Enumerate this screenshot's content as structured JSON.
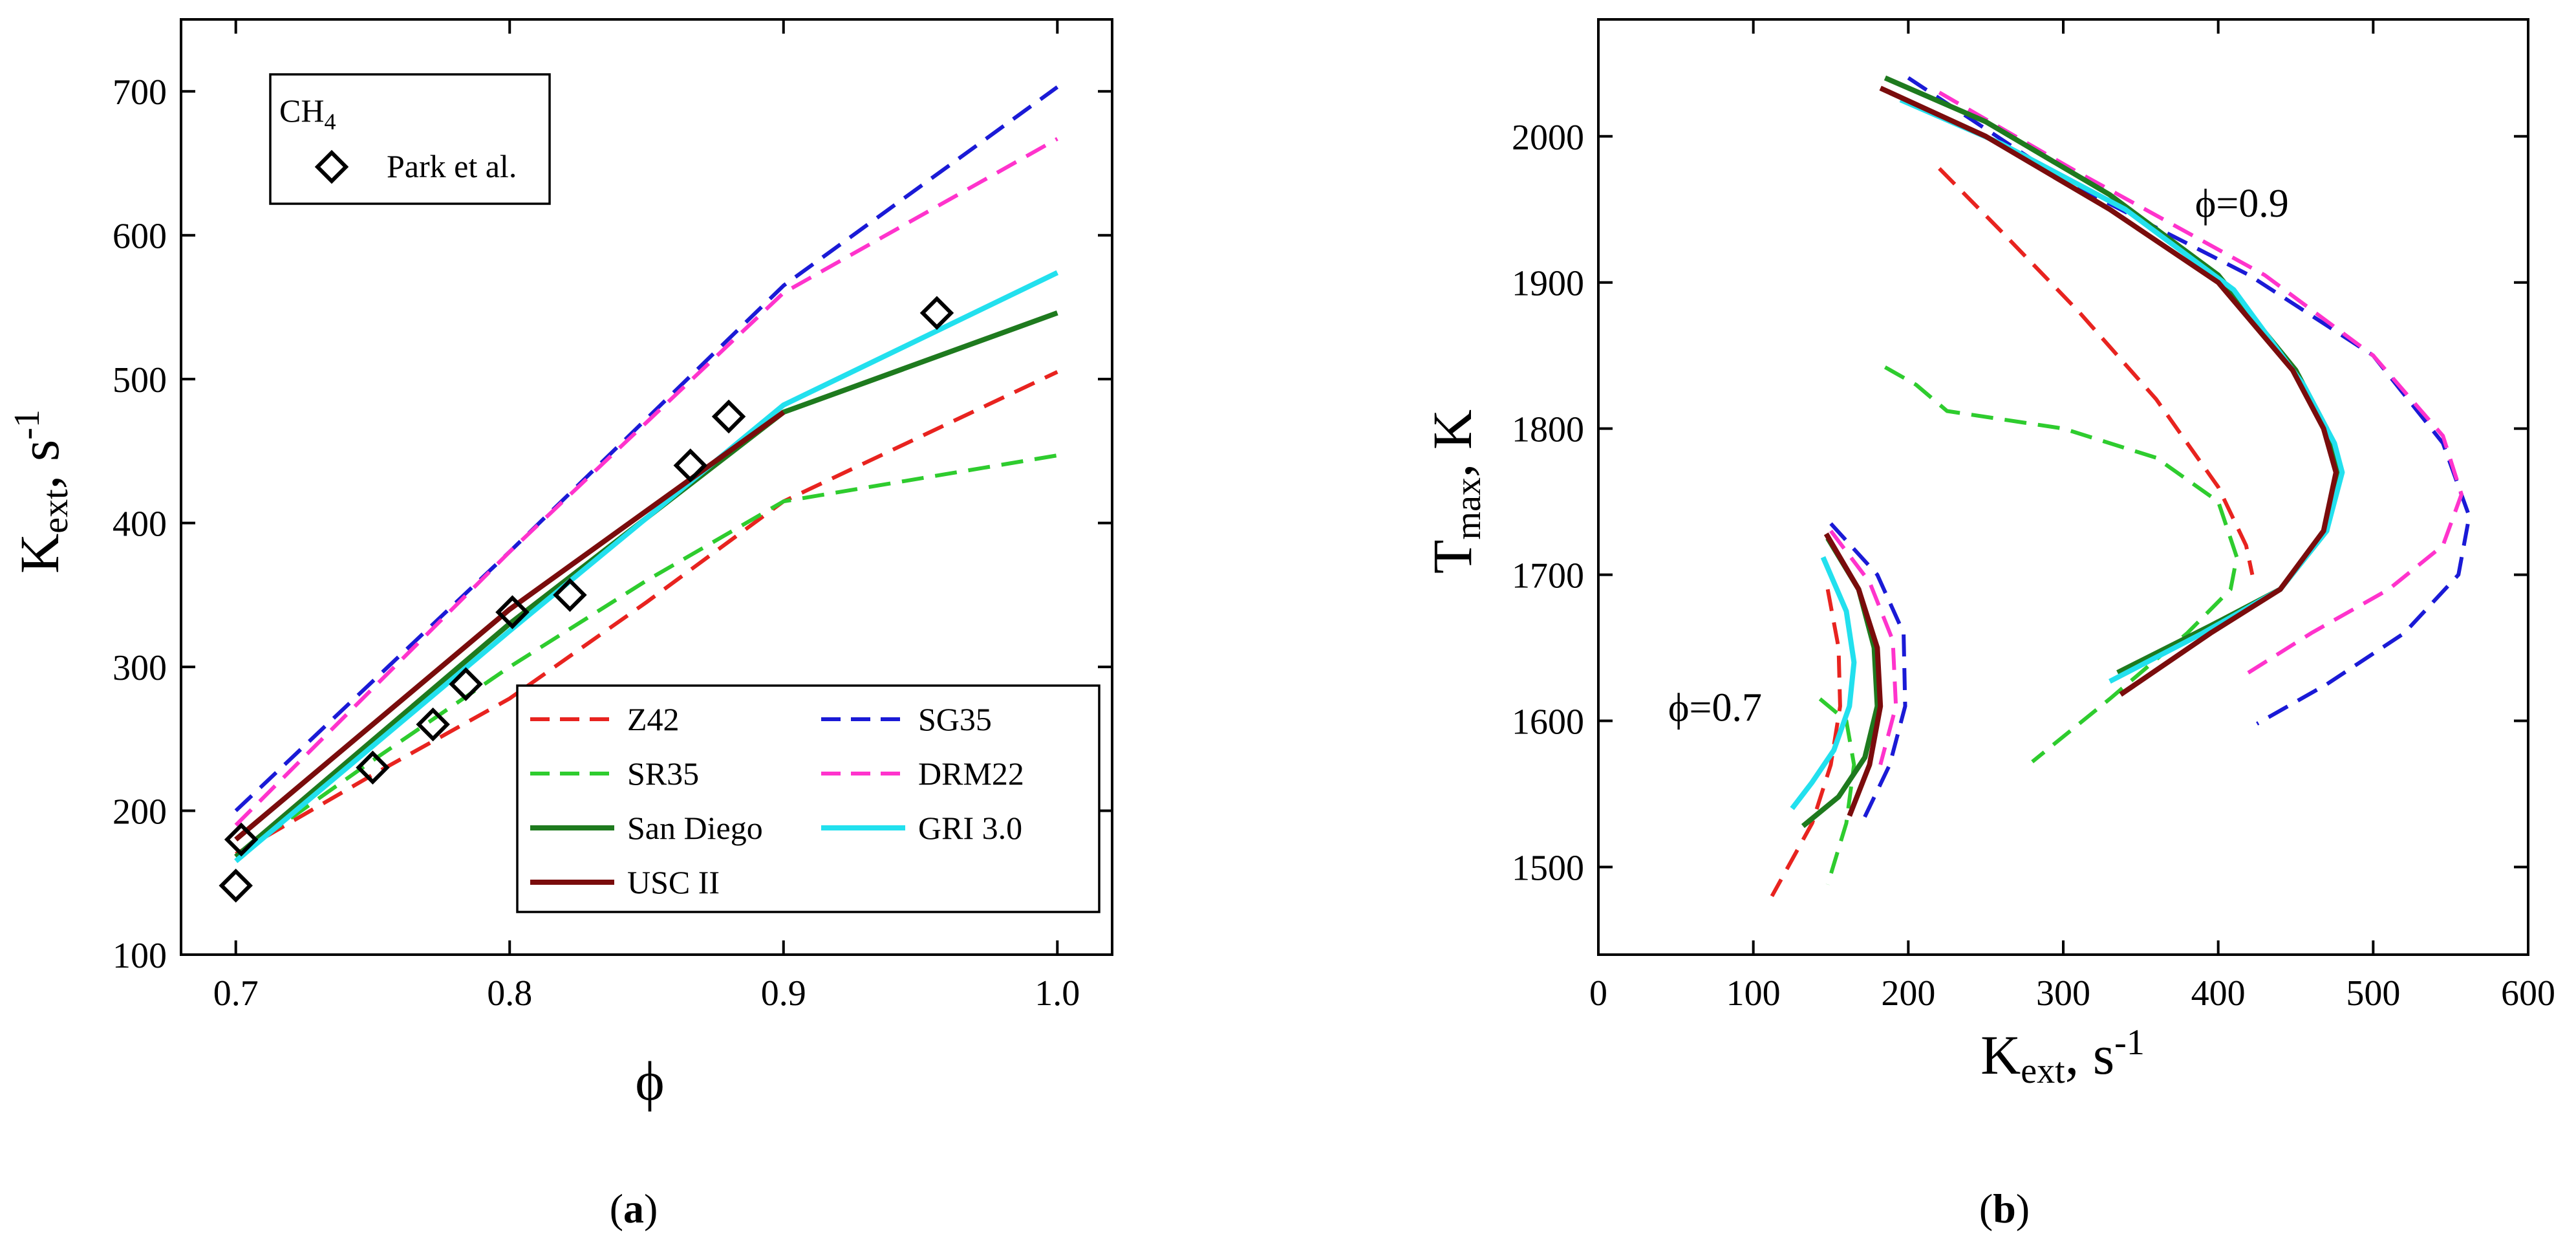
{
  "chart_data": [
    {
      "id": "a",
      "type": "line",
      "panel_label": {
        "open": "(",
        "letter": "a",
        "close": ")"
      },
      "xlabel": "ϕ",
      "ylabel": {
        "main": "K",
        "sub": "ext",
        "unit": ", s",
        "sup": "-1"
      },
      "xlim": [
        0.68,
        1.02
      ],
      "ylim": [
        100,
        750
      ],
      "xticks": [
        0.7,
        0.8,
        0.9,
        1.0
      ],
      "xtick_labels": [
        "0.7",
        "0.8",
        "0.9",
        "1.0"
      ],
      "yticks": [
        100,
        200,
        300,
        400,
        500,
        600,
        700
      ],
      "ytick_labels": [
        "100",
        "200",
        "300",
        "400",
        "500",
        "600",
        "700"
      ],
      "annotation": {
        "main": "CH",
        "sub": "4"
      },
      "experiment": {
        "name": "Park et al.",
        "marker": "diamond",
        "x": [
          0.7,
          0.702,
          0.75,
          0.772,
          0.784,
          0.801,
          0.822,
          0.866,
          0.88,
          0.956
        ],
        "y": [
          148,
          180,
          230,
          260,
          288,
          338,
          350,
          440,
          474,
          546
        ]
      },
      "series": [
        {
          "name": "Z42",
          "color": "#e8231f",
          "dash": "dashed",
          "x": [
            0.7,
            0.75,
            0.8,
            0.85,
            0.9,
            1.0
          ],
          "y": [
            170,
            225,
            278,
            345,
            415,
            505
          ]
        },
        {
          "name": "SG35",
          "color": "#1a1ad6",
          "dash": "dashed",
          "x": [
            0.7,
            0.8,
            0.9,
            1.0
          ],
          "y": [
            200,
            380,
            565,
            703
          ]
        },
        {
          "name": "SR35",
          "color": "#2ecc2e",
          "dash": "dashed",
          "x": [
            0.7,
            0.75,
            0.8,
            0.85,
            0.9,
            1.0
          ],
          "y": [
            168,
            235,
            300,
            360,
            415,
            447
          ]
        },
        {
          "name": "DRM22",
          "color": "#ff33cc",
          "dash": "dashed",
          "x": [
            0.7,
            0.8,
            0.9,
            1.0
          ],
          "y": [
            190,
            380,
            560,
            667
          ]
        },
        {
          "name": "San Diego",
          "color": "#1e7a1e",
          "dash": "solid",
          "x": [
            0.7,
            0.8,
            0.9,
            1.0
          ],
          "y": [
            168,
            330,
            477,
            546
          ]
        },
        {
          "name": "GRI 3.0",
          "color": "#22e0ee",
          "dash": "solid",
          "x": [
            0.7,
            0.8,
            0.9,
            1.0
          ],
          "y": [
            165,
            325,
            482,
            574
          ]
        },
        {
          "name": "USC II",
          "color": "#7a0c0c",
          "dash": "solid",
          "x": [
            0.7,
            0.8,
            0.9
          ],
          "y": [
            180,
            340,
            477
          ]
        }
      ]
    },
    {
      "id": "b",
      "type": "line",
      "panel_label": {
        "open": "(",
        "letter": "b",
        "close": ")"
      },
      "xlabel": {
        "main": "K",
        "sub": "ext",
        "unit": ", s",
        "sup": "-1"
      },
      "ylabel": {
        "main": "T",
        "sub": "max",
        "unit": ", K"
      },
      "xlim": [
        0,
        600
      ],
      "ylim": [
        1440,
        2080
      ],
      "xticks": [
        0,
        100,
        200,
        300,
        400,
        500,
        600
      ],
      "xtick_labels": [
        "0",
        "100",
        "200",
        "300",
        "400",
        "500",
        "600"
      ],
      "yticks": [
        1500,
        1600,
        1700,
        1800,
        1900,
        2000
      ],
      "ytick_labels": [
        "1500",
        "1600",
        "1700",
        "1800",
        "1900",
        "2000"
      ],
      "annotations": [
        {
          "text": "ϕ=0.9",
          "x": 385,
          "y": 1945
        },
        {
          "text": "ϕ=0.7",
          "x": 45,
          "y": 1600
        }
      ],
      "series": [
        {
          "name": "Z42 ϕ=0.9",
          "color": "#e8231f",
          "dash": "dashed",
          "x": [
            220,
            260,
            310,
            360,
            400,
            418,
            422
          ],
          "y": [
            1978,
            1935,
            1880,
            1820,
            1760,
            1720,
            1700
          ]
        },
        {
          "name": "SR35 ϕ=0.9",
          "color": "#2ecc2e",
          "dash": "dashed",
          "x": [
            185,
            205,
            225,
            300,
            360,
            400,
            412,
            408,
            380,
            330,
            280
          ],
          "y": [
            1842,
            1830,
            1812,
            1800,
            1780,
            1750,
            1712,
            1690,
            1660,
            1615,
            1572
          ]
        },
        {
          "name": "SG35 ϕ=0.9",
          "color": "#1a1ad6",
          "dash": "dashed",
          "x": [
            200,
            300,
            420,
            500,
            545,
            562,
            555,
            520,
            470,
            425
          ],
          "y": [
            2040,
            1970,
            1905,
            1850,
            1790,
            1740,
            1700,
            1660,
            1625,
            1598
          ]
        },
        {
          "name": "DRM22 ϕ=0.9",
          "color": "#ff33cc",
          "dash": "dashed",
          "x": [
            220,
            310,
            430,
            500,
            545,
            557,
            545,
            510,
            460,
            415
          ],
          "y": [
            2030,
            1975,
            1905,
            1850,
            1795,
            1755,
            1720,
            1690,
            1660,
            1630
          ]
        },
        {
          "name": "San Diego ϕ=0.9",
          "color": "#1e7a1e",
          "dash": "solid",
          "x": [
            185,
            250,
            330,
            400,
            450,
            470,
            478,
            470,
            440,
            395,
            335
          ],
          "y": [
            2040,
            2010,
            1960,
            1905,
            1840,
            1800,
            1770,
            1730,
            1690,
            1665,
            1633
          ]
        },
        {
          "name": "GRI 3.0 ϕ=0.9",
          "color": "#22e0ee",
          "dash": "solid",
          "x": [
            195,
            260,
            340,
            410,
            455,
            475,
            480,
            470,
            440,
            390,
            330
          ],
          "y": [
            2025,
            1995,
            1950,
            1895,
            1830,
            1790,
            1770,
            1730,
            1690,
            1660,
            1627
          ]
        },
        {
          "name": "USC II ϕ=0.9",
          "color": "#7a0c0c",
          "dash": "solid",
          "x": [
            182,
            250,
            330,
            400,
            448,
            468,
            476,
            468,
            440,
            395,
            337
          ],
          "y": [
            2033,
            2000,
            1950,
            1900,
            1840,
            1800,
            1770,
            1730,
            1690,
            1660,
            1618
          ]
        },
        {
          "name": "Z42 ϕ=0.7",
          "color": "#e8231f",
          "dash": "dashed",
          "x": [
            148,
            155,
            156,
            150,
            138,
            112
          ],
          "y": [
            1690,
            1650,
            1610,
            1570,
            1530,
            1480
          ]
        },
        {
          "name": "SR35 ϕ=0.7",
          "color": "#2ecc2e",
          "dash": "dashed",
          "x": [
            143,
            160,
            165,
            160,
            148
          ],
          "y": [
            1615,
            1600,
            1570,
            1530,
            1488
          ]
        },
        {
          "name": "SG35 ϕ=0.7",
          "color": "#1a1ad6",
          "dash": "dashed",
          "x": [
            150,
            180,
            197,
            198,
            188,
            170
          ],
          "y": [
            1735,
            1700,
            1660,
            1610,
            1570,
            1530
          ]
        },
        {
          "name": "DRM22 ϕ=0.7",
          "color": "#ff33cc",
          "dash": "dashed",
          "x": [
            150,
            175,
            190,
            192,
            182
          ],
          "y": [
            1730,
            1695,
            1655,
            1610,
            1570
          ]
        },
        {
          "name": "San Diego ϕ=0.7",
          "color": "#1e7a1e",
          "dash": "solid",
          "x": [
            148,
            168,
            178,
            180,
            172,
            155,
            132
          ],
          "y": [
            1725,
            1690,
            1650,
            1610,
            1575,
            1548,
            1528
          ]
        },
        {
          "name": "GRI 3.0 ϕ=0.7",
          "color": "#22e0ee",
          "dash": "solid",
          "x": [
            145,
            160,
            165,
            162,
            152,
            138,
            125
          ],
          "y": [
            1712,
            1675,
            1640,
            1610,
            1580,
            1558,
            1540
          ]
        },
        {
          "name": "USC II ϕ=0.7",
          "color": "#7a0c0c",
          "dash": "solid",
          "x": [
            147,
            168,
            180,
            182,
            175,
            162
          ],
          "y": [
            1728,
            1690,
            1650,
            1610,
            1570,
            1535
          ]
        }
      ]
    }
  ]
}
